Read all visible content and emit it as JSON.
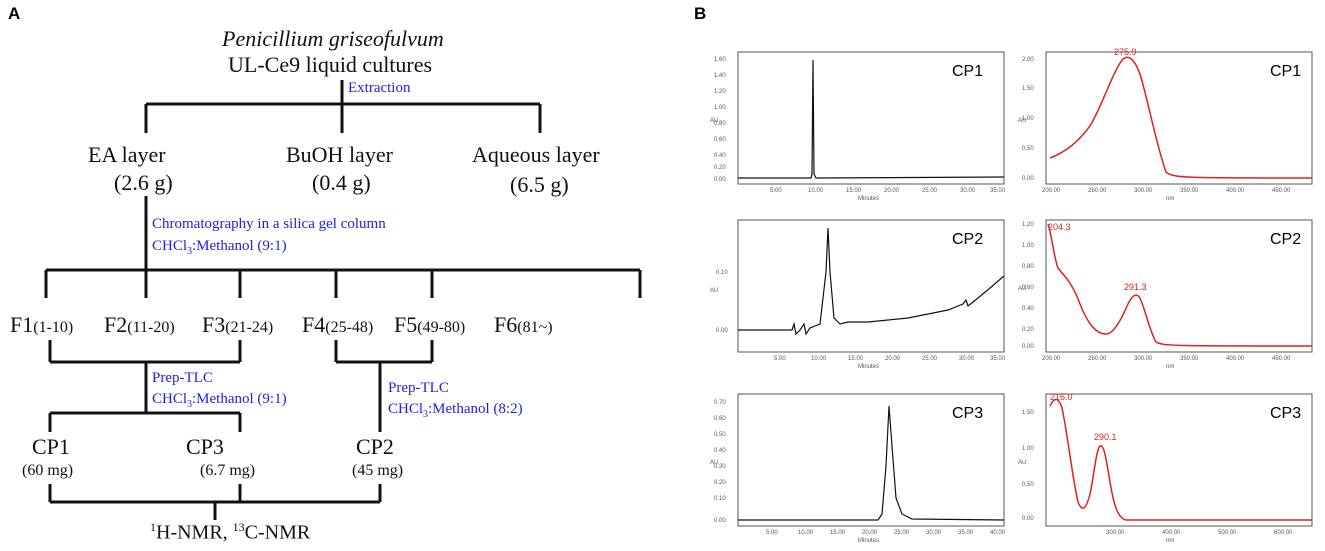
{
  "panel_a": {
    "letter": "A",
    "organism": "Penicillium griseofulvum",
    "culture": "UL-Ce9 liquid cultures",
    "extraction": "Extraction",
    "layers": [
      {
        "name": "EA layer",
        "mass": "(2.6 g)"
      },
      {
        "name": "BuOH layer",
        "mass": "(0.4 g)"
      },
      {
        "name": "Aqueous layer",
        "mass": "(6.5 g)"
      }
    ],
    "chromatography": "Chromatography in a silica gel column",
    "solvent1_prefix": "CHCl",
    "solvent1_sub": "3",
    "solvent1_suffix": ":Methanol (9:1)",
    "fractions": [
      {
        "name": "F1",
        "range": "(1-10)"
      },
      {
        "name": "F2",
        "range": "(11-20)"
      },
      {
        "name": "F3",
        "range": "(21-24)"
      },
      {
        "name": "F4",
        "range": "(25-48)"
      },
      {
        "name": "F5",
        "range": "(49-80)"
      },
      {
        "name": "F6",
        "range": "(81~)"
      }
    ],
    "prep_left": "Prep-TLC",
    "prep_left_solvent_suffix": ":Methanol (9:1)",
    "prep_right": "Prep-TLC",
    "prep_right_solvent_suffix": ":Methanol (8:2)",
    "compounds": [
      {
        "name": "CP1",
        "mass": "(60 mg)"
      },
      {
        "name": "CP3",
        "mass": "(6.7 mg)"
      },
      {
        "name": "CP2",
        "mass": "(45 mg)"
      }
    ],
    "nmr_sup1": "1",
    "nmr_part1": "H-NMR, ",
    "nmr_sup2": "13",
    "nmr_part2": "C-NMR"
  },
  "panel_b": {
    "letter": "B",
    "chromatograms": [
      {
        "label": "CP1",
        "y_axis": "AU",
        "x_axis": "Minutes",
        "y_ticks": [
          "1.60",
          "1.40",
          "1.20",
          "1.00",
          "0.80",
          "0.60",
          "0.40",
          "0.20",
          "0.00"
        ],
        "x_ticks": [
          "5.00",
          "10.00",
          "15.00",
          "20.00",
          "25.00",
          "30.00",
          "35.00"
        ]
      },
      {
        "label": "CP2",
        "y_axis": "AU",
        "x_axis": "Minutes",
        "y_ticks": [
          "0.10",
          "0.00"
        ],
        "x_ticks": [
          "5.00",
          "10.00",
          "15.00",
          "20.00",
          "25.00",
          "30.00",
          "35.00"
        ]
      },
      {
        "label": "CP3",
        "y_axis": "AU",
        "x_axis": "Minutes",
        "y_ticks": [
          "0.70",
          "0.60",
          "0.50",
          "0.40",
          "0.30",
          "0.20",
          "0.10",
          "0.00"
        ],
        "x_ticks": [
          "5.00",
          "10.00",
          "15.00",
          "20.00",
          "25.00",
          "30.00",
          "35.00",
          "40.00"
        ]
      }
    ],
    "spectra": [
      {
        "label": "CP1",
        "y_axis": "AU",
        "x_axis": "nm",
        "peaks": [
          "275.9"
        ],
        "y_ticks": [
          "2.00",
          "1.50",
          "1.00",
          "0.50",
          "0.00"
        ],
        "x_ticks": [
          "200.00",
          "250.00",
          "300.00",
          "350.00",
          "400.00",
          "450.00"
        ]
      },
      {
        "label": "CP2",
        "y_axis": "AU",
        "x_axis": "nm",
        "peaks": [
          "204.3",
          "291.3"
        ],
        "y_ticks": [
          "1.20",
          "1.00",
          "0.80",
          "0.60",
          "0.40",
          "0.20",
          "0.00"
        ],
        "x_ticks": [
          "200.00",
          "250.00",
          "300.00",
          "350.00",
          "400.00",
          "450.00"
        ]
      },
      {
        "label": "CP3",
        "y_axis": "AU",
        "x_axis": "nm",
        "peaks": [
          "216.0",
          "290.1"
        ],
        "y_ticks": [
          "1.50",
          "1.00",
          "0.50",
          "0.00"
        ],
        "x_ticks": [
          "300.00",
          "400.00",
          "500.00",
          "600.00"
        ]
      }
    ]
  },
  "colors": {
    "blue_text": "#2020e0",
    "spectrum_red": "#e02020",
    "line": "#111111"
  }
}
